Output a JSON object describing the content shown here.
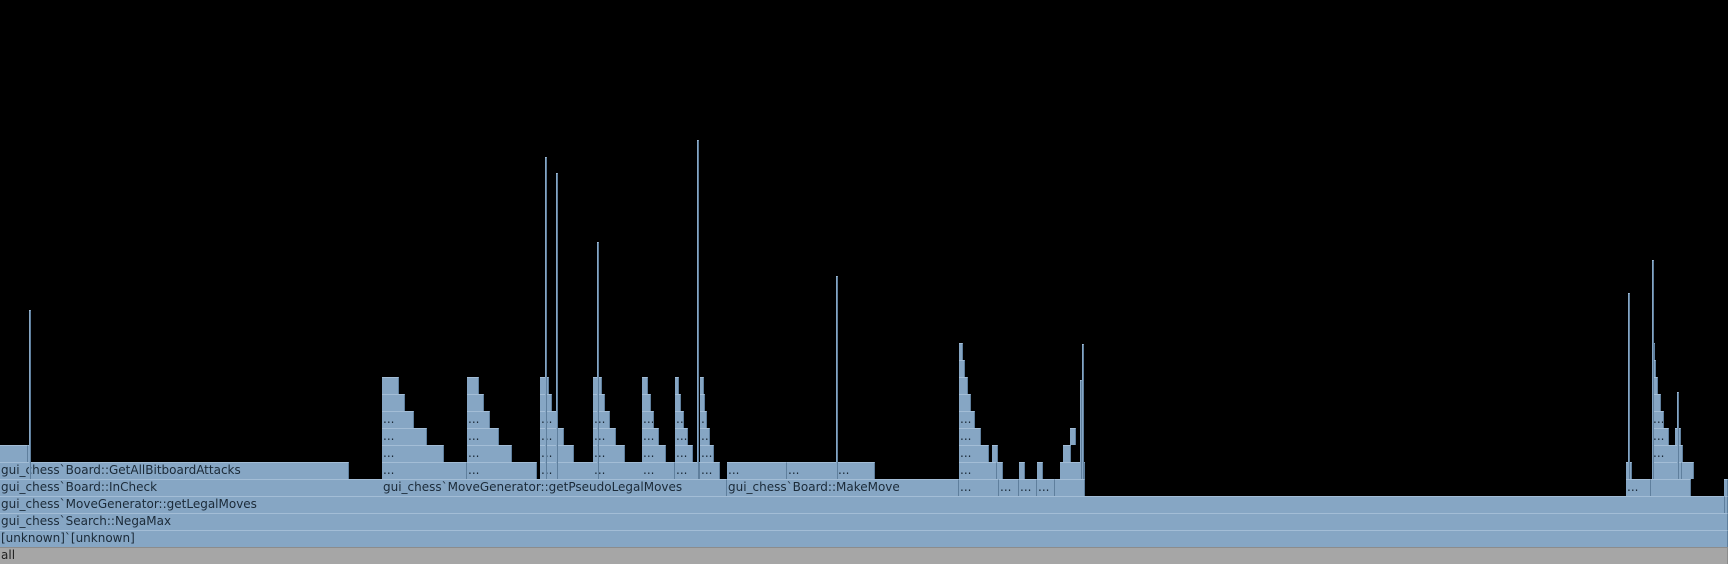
{
  "flamegraph": {
    "root_label": "all",
    "ellipsis": "...",
    "labels": {
      "unknown": "[unknown]`[unknown]",
      "negamax": "gui_chess`Search::NegaMax",
      "getLegalMoves": "gui_chess`MoveGenerator::getLegalMoves",
      "inCheck": "gui_chess`Board::InCheck",
      "getPseudoLegalMoves": "gui_chess`MoveGenerator::getPseudoLegalMoves",
      "makeMove": "gui_chess`Board::MakeMove",
      "getAllBitboardAttacks": "gui_chess`Board::GetAllBitboardAttacks"
    },
    "colors": {
      "frame": "#86a6c4",
      "frame_border": "#5f7f9d",
      "root": "#a6a6a6",
      "background": "#000000"
    }
  }
}
